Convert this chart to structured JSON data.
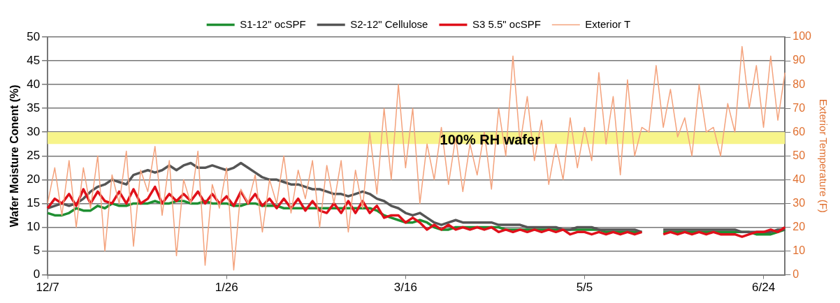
{
  "chart_data": {
    "type": "line",
    "ylabel": "Wafer Moisture Conent (%)",
    "y2label": "Exterior Temperature (F)",
    "categories": [
      "12/7",
      null,
      null,
      null,
      null,
      null,
      null,
      null,
      null,
      null,
      null,
      null,
      null,
      null,
      null,
      null,
      null,
      null,
      null,
      null,
      null,
      null,
      null,
      null,
      null,
      "1/26",
      null,
      null,
      null,
      null,
      null,
      null,
      null,
      null,
      null,
      null,
      null,
      null,
      null,
      null,
      null,
      null,
      null,
      null,
      null,
      null,
      null,
      null,
      null,
      null,
      "3/16",
      null,
      null,
      null,
      null,
      null,
      null,
      null,
      null,
      null,
      null,
      null,
      null,
      null,
      null,
      null,
      null,
      null,
      null,
      null,
      null,
      null,
      null,
      null,
      null,
      "5/5",
      null,
      null,
      null,
      null,
      null,
      null,
      null,
      null,
      null,
      null,
      null,
      null,
      null,
      null,
      null,
      null,
      null,
      null,
      null,
      null,
      null,
      null,
      null,
      null,
      "6/24",
      null,
      null,
      null
    ],
    "ylim": [
      0,
      50
    ],
    "yticks": [
      0,
      5,
      10,
      15,
      20,
      25,
      30,
      35,
      40,
      45,
      50
    ],
    "y2lim": [
      0,
      100
    ],
    "y2ticks": [
      0,
      10,
      20,
      30,
      40,
      50,
      60,
      70,
      80,
      90,
      100
    ],
    "grid": "y",
    "legend": "top",
    "bands": [
      {
        "axis": "y",
        "from": 27.5,
        "to": 30,
        "label": "100% RH wafer",
        "color": "#f7f48a"
      }
    ],
    "series": [
      {
        "name": "S1-12\" ocSPF",
        "color": "#1f8f32",
        "values": [
          13,
          12.5,
          12.5,
          13,
          14,
          13.5,
          13.5,
          14.5,
          14,
          15,
          14.5,
          14.5,
          15,
          15,
          15,
          15.5,
          15,
          15,
          15.5,
          15.5,
          15,
          15,
          15.5,
          15,
          15,
          15,
          14.5,
          14.5,
          15,
          15,
          14.5,
          14.5,
          14.5,
          14,
          14,
          14,
          14,
          14,
          14,
          14,
          14,
          14,
          14,
          14,
          14,
          14,
          13.5,
          12.5,
          12,
          11.5,
          11,
          11,
          11.5,
          11,
          10,
          9.5,
          9.5,
          10,
          10,
          10,
          10,
          10,
          10,
          10,
          9.5,
          9.5,
          9.5,
          9.5,
          9.5,
          9.5,
          9.5,
          9.5,
          9.5,
          9.5,
          9.5,
          9.5,
          9.5,
          9.5,
          9,
          9,
          9,
          9,
          9,
          9,
          null,
          null,
          9,
          9,
          9,
          9,
          9,
          9,
          9,
          9,
          9,
          9,
          9,
          9,
          9,
          8.5,
          8.5,
          8.5,
          9,
          9.5
        ]
      },
      {
        "name": "S2-12\" Cellulose",
        "color": "#555555",
        "values": [
          14,
          14.5,
          15,
          14.5,
          15,
          16,
          17.5,
          18.5,
          19,
          20,
          19.5,
          19,
          21,
          21.5,
          22,
          21.5,
          22,
          23,
          22,
          23,
          23.5,
          22.5,
          22.5,
          23,
          22.5,
          22,
          22.5,
          23.5,
          22.5,
          21.5,
          20.5,
          20,
          20,
          19.5,
          19,
          19,
          18.5,
          18,
          18,
          17.5,
          17,
          17,
          16.5,
          17,
          17.5,
          17,
          16,
          15.5,
          14.5,
          14,
          13,
          12.5,
          13,
          12,
          11,
          10.5,
          11,
          11.5,
          11,
          11,
          11,
          11,
          11,
          10.5,
          10.5,
          10.5,
          10.5,
          10,
          10,
          10,
          10,
          10,
          9.5,
          9.5,
          10,
          10,
          10,
          9.5,
          9.5,
          9.5,
          9.5,
          9.5,
          9.5,
          9,
          null,
          null,
          9.5,
          9.5,
          9.5,
          9.5,
          9.5,
          9.5,
          9.5,
          9.5,
          9.5,
          9.5,
          9.5,
          9,
          9,
          9,
          9,
          9,
          9.5,
          9.5
        ]
      },
      {
        "name": "S3 5.5\" ocSPF",
        "color": "#e0101a",
        "values": [
          14,
          16,
          15,
          17,
          14.5,
          18,
          15,
          17.5,
          15.5,
          15,
          17.5,
          15,
          18,
          15,
          16,
          18.5,
          15,
          17,
          15.5,
          17,
          15.5,
          17.5,
          15,
          17,
          15,
          16.5,
          14.5,
          17.5,
          15,
          17,
          14.5,
          16,
          14,
          16,
          14,
          16,
          13.5,
          15.5,
          13.5,
          13,
          15,
          13,
          15.5,
          13,
          15.5,
          13,
          14.5,
          12,
          12.5,
          12.5,
          11,
          12,
          11,
          9.5,
          10.5,
          9.5,
          10.5,
          9.5,
          10,
          9.5,
          10,
          9.5,
          10,
          9,
          9.5,
          9,
          9.5,
          9,
          9.5,
          9,
          9.5,
          9,
          9.5,
          8.5,
          9,
          9,
          8.5,
          9,
          8.5,
          9,
          8.5,
          9,
          8.5,
          9,
          null,
          null,
          8.5,
          9,
          8.5,
          9,
          8.5,
          9,
          8.5,
          9,
          8.5,
          8.5,
          8.5,
          8,
          8.5,
          9,
          9,
          9.5,
          9,
          10
        ]
      },
      {
        "name": "Exterior T",
        "color": "#f4a27c",
        "axis": "y2",
        "values": [
          30,
          45,
          25,
          48,
          20,
          45,
          28,
          50,
          10,
          42,
          30,
          52,
          12,
          44,
          35,
          54,
          25,
          48,
          8,
          40,
          30,
          52,
          4,
          38,
          28,
          45,
          2,
          36,
          30,
          42,
          18,
          40,
          30,
          50,
          26,
          44,
          32,
          48,
          20,
          46,
          30,
          48,
          18,
          44,
          28,
          60,
          34,
          70,
          40,
          80,
          45,
          70,
          30,
          55,
          40,
          62,
          38,
          58,
          35,
          55,
          42,
          60,
          36,
          70,
          50,
          92,
          55,
          75,
          48,
          65,
          38,
          55,
          40,
          66,
          45,
          62,
          48,
          85,
          55,
          75,
          42,
          82,
          50,
          62,
          60,
          88,
          62,
          78,
          58,
          66,
          50,
          80,
          60,
          62,
          50,
          72,
          60,
          96,
          70,
          88,
          62,
          92,
          65,
          85
        ]
      }
    ]
  }
}
